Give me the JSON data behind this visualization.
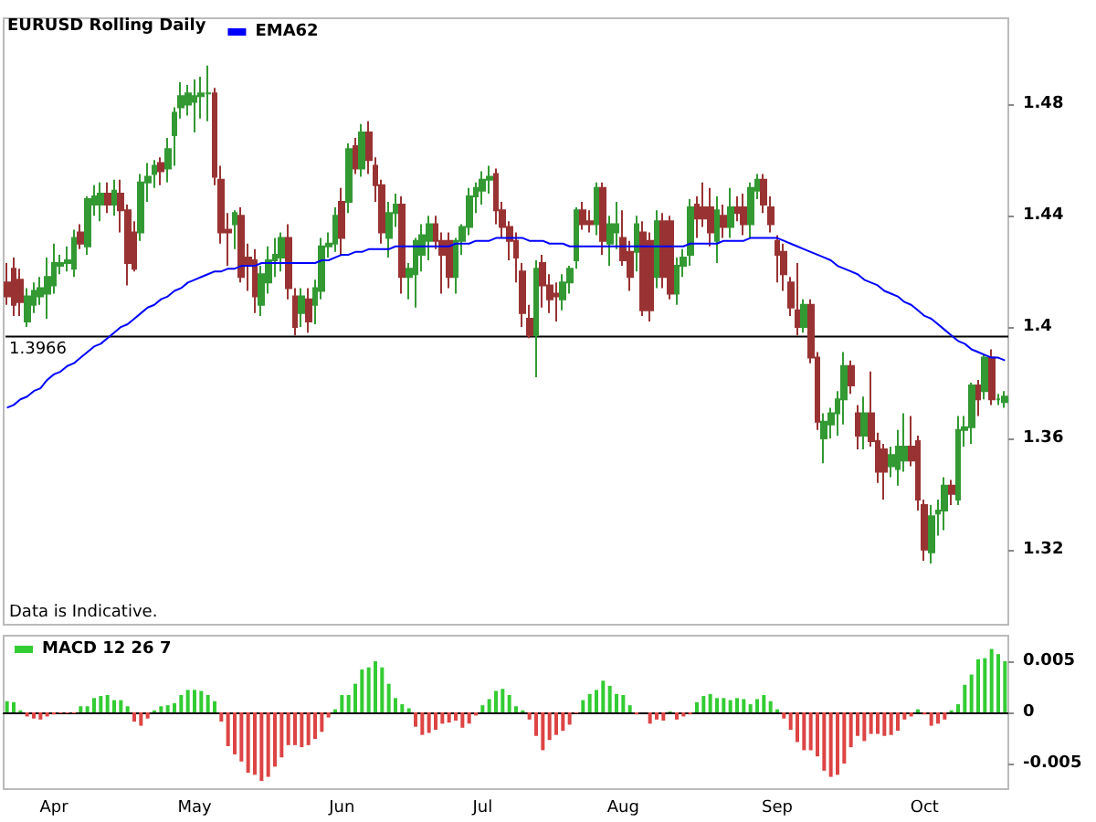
{
  "chart_data": [
    {
      "type": "candlestick",
      "title": "EURUSD Rolling Daily",
      "legend": "top left",
      "tick_labels": "y",
      "categories": [
        null,
        null,
        null,
        null,
        null,
        null,
        null,
        null,
        null,
        null,
        null,
        null,
        null,
        null,
        null,
        null,
        null,
        null,
        null,
        null,
        null,
        null,
        null,
        null,
        null,
        null,
        null,
        null,
        null,
        null,
        null,
        null,
        null,
        null,
        null,
        null,
        null,
        null,
        null,
        null,
        null,
        null,
        null,
        null,
        null,
        null,
        null,
        null,
        null,
        null,
        null,
        null,
        null,
        null,
        null,
        null,
        null,
        null,
        null,
        null,
        null,
        null,
        null,
        null,
        null,
        null,
        null,
        null,
        null,
        null,
        null,
        null,
        null,
        null,
        null,
        null,
        null,
        null,
        null,
        null,
        null,
        null,
        null,
        null,
        null,
        null,
        null,
        null,
        null,
        null,
        null,
        null,
        null,
        null,
        null,
        null,
        null,
        null,
        null,
        null,
        null,
        null,
        null,
        null,
        null,
        null,
        null,
        null,
        null,
        null,
        null,
        null,
        null,
        null,
        null,
        null,
        null,
        null,
        null,
        null,
        null,
        null,
        null,
        null,
        null,
        null,
        null,
        null,
        null,
        null,
        null,
        null,
        null,
        null,
        null,
        null,
        null,
        null,
        null,
        null,
        null,
        null,
        null,
        null,
        null,
        null,
        null,
        null,
        null,
        null
      ],
      "colors": [
        "#993333",
        "#993333",
        "#993333",
        "#339933",
        "#339933",
        "#339933",
        "#339933",
        "#339933",
        "#339933",
        "#339933",
        "#339933",
        "#993333",
        "#339933",
        "#339933",
        "#339933",
        "#993333",
        "#339933",
        "#993333",
        "#993333",
        "#993333",
        "#339933",
        "#339933",
        "#339933",
        "#993333",
        "#339933",
        "#339933",
        "#339933",
        "#339933",
        "#339933",
        "#339933",
        "#339933",
        "#993333",
        "#993333",
        "#993333",
        "#339933",
        "#993333",
        "#993333",
        "#993333",
        "#339933",
        "#339933",
        "#339933",
        "#339933",
        "#993333",
        "#993333",
        "#339933",
        "#993333",
        "#339933",
        "#339933",
        "#339933",
        "#339933",
        "#993333",
        "#339933",
        "#993333",
        "#339933",
        "#993333",
        "#993333",
        "#993333",
        "#339933",
        "#339933",
        "#993333",
        "#339933",
        "#339933",
        "#339933",
        "#339933",
        "#993333",
        "#993333",
        "#993333",
        "#339933",
        "#339933",
        "#339933",
        "#339933",
        "#339933",
        "#339933",
        "#993333",
        "#993333",
        "#993333",
        "#993333",
        "#993333",
        "#993333",
        "#339933",
        "#993333",
        "#993333",
        "#993333",
        "#339933",
        "#339933",
        "#339933",
        "#993333",
        "#993333",
        "#339933",
        "#993333",
        "#339933",
        "#339933",
        "#993333",
        "#993333",
        "#339933",
        "#993333",
        "#993333",
        "#339933",
        "#993333",
        "#993333",
        "#339933",
        "#339933",
        "#339933",
        "#993333",
        "#993333",
        "#993333",
        "#339933",
        "#993333",
        "#339933",
        "#993333",
        "#993333",
        "#339933",
        "#339933",
        "#993333",
        "#993333",
        "#993333",
        "#993333",
        "#993333",
        "#993333",
        "#339933",
        "#993333",
        "#993333",
        "#339933",
        "#339933",
        "#339933",
        "#339933",
        "#993333",
        "#993333",
        "#339933",
        "#993333",
        "#993333",
        "#993333",
        "#339933",
        "#339933",
        "#339933",
        "#993333",
        "#993333",
        "#993333",
        "#339933",
        "#339933",
        "#339933",
        "#993333",
        "#339933",
        "#339933",
        "#339933",
        "#993333",
        "#339933",
        "#993333",
        "#339933",
        "#339933"
      ],
      "ohlc": [
        [
          1.416,
          1.423,
          1.408,
          1.411
        ],
        [
          1.421,
          1.425,
          1.404,
          1.408
        ],
        [
          1.417,
          1.421,
          1.404,
          1.409
        ],
        [
          1.402,
          1.414,
          1.4,
          1.411
        ],
        [
          1.408,
          1.416,
          1.405,
          1.413
        ],
        [
          1.411,
          1.418,
          1.408,
          1.414
        ],
        [
          1.412,
          1.425,
          1.403,
          1.418
        ],
        [
          1.415,
          1.43,
          1.412,
          1.423
        ],
        [
          1.422,
          1.426,
          1.419,
          1.423
        ],
        [
          1.423,
          1.429,
          1.42,
          1.424
        ],
        [
          1.421,
          1.435,
          1.418,
          1.432
        ],
        [
          1.434,
          1.437,
          1.428,
          1.43
        ],
        [
          1.429,
          1.447,
          1.426,
          1.446
        ],
        [
          1.444,
          1.451,
          1.44,
          1.447
        ],
        [
          1.444,
          1.452,
          1.438,
          1.448
        ],
        [
          1.448,
          1.452,
          1.441,
          1.444
        ],
        [
          1.444,
          1.453,
          1.44,
          1.449
        ],
        [
          1.448,
          1.453,
          1.434,
          1.442
        ],
        [
          1.442,
          1.444,
          1.415,
          1.423
        ],
        [
          1.434,
          1.438,
          1.42,
          1.421
        ],
        [
          1.434,
          1.455,
          1.431,
          1.452
        ],
        [
          1.452,
          1.459,
          1.445,
          1.454
        ],
        [
          1.455,
          1.46,
          1.45,
          1.458
        ],
        [
          1.459,
          1.461,
          1.451,
          1.456
        ],
        [
          1.457,
          1.468,
          1.452,
          1.464
        ],
        [
          1.469,
          1.479,
          1.458,
          1.477
        ],
        [
          1.479,
          1.488,
          1.475,
          1.483
        ],
        [
          1.48,
          1.487,
          1.476,
          1.484
        ],
        [
          1.481,
          1.489,
          1.47,
          1.483
        ],
        [
          1.483,
          1.49,
          1.475,
          1.484
        ],
        [
          1.484,
          1.494,
          1.474,
          1.484
        ],
        [
          1.484,
          1.486,
          1.451,
          1.454
        ],
        [
          1.453,
          1.458,
          1.43,
          1.434
        ],
        [
          1.435,
          1.441,
          1.422,
          1.434
        ],
        [
          1.437,
          1.442,
          1.428,
          1.441
        ],
        [
          1.44,
          1.443,
          1.416,
          1.418
        ],
        [
          1.425,
          1.43,
          1.413,
          1.422
        ],
        [
          1.424,
          1.428,
          1.405,
          1.411
        ],
        [
          1.408,
          1.422,
          1.404,
          1.419
        ],
        [
          1.416,
          1.429,
          1.412,
          1.424
        ],
        [
          1.424,
          1.432,
          1.418,
          1.426
        ],
        [
          1.425,
          1.434,
          1.42,
          1.432
        ],
        [
          1.432,
          1.437,
          1.41,
          1.414
        ],
        [
          1.411,
          1.414,
          1.397,
          1.4
        ],
        [
          1.405,
          1.414,
          1.4,
          1.411
        ],
        [
          1.41,
          1.414,
          1.398,
          1.402
        ],
        [
          1.408,
          1.417,
          1.401,
          1.414
        ],
        [
          1.413,
          1.432,
          1.41,
          1.429
        ],
        [
          1.429,
          1.434,
          1.425,
          1.43
        ],
        [
          1.43,
          1.443,
          1.427,
          1.44
        ],
        [
          1.445,
          1.45,
          1.426,
          1.432
        ],
        [
          1.445,
          1.466,
          1.441,
          1.464
        ],
        [
          1.465,
          1.468,
          1.455,
          1.457
        ],
        [
          1.457,
          1.473,
          1.454,
          1.47
        ],
        [
          1.47,
          1.474,
          1.455,
          1.46
        ],
        [
          1.458,
          1.461,
          1.445,
          1.451
        ],
        [
          1.451,
          1.453,
          1.43,
          1.434
        ],
        [
          1.432,
          1.445,
          1.425,
          1.441
        ],
        [
          1.441,
          1.448,
          1.436,
          1.444
        ],
        [
          1.444,
          1.447,
          1.412,
          1.418
        ],
        [
          1.418,
          1.423,
          1.41,
          1.421
        ],
        [
          1.419,
          1.432,
          1.407,
          1.431
        ],
        [
          1.426,
          1.437,
          1.42,
          1.433
        ],
        [
          1.431,
          1.44,
          1.424,
          1.437
        ],
        [
          1.437,
          1.44,
          1.428,
          1.431
        ],
        [
          1.431,
          1.434,
          1.412,
          1.426
        ],
        [
          1.431,
          1.434,
          1.414,
          1.418
        ],
        [
          1.418,
          1.432,
          1.412,
          1.431
        ],
        [
          1.431,
          1.437,
          1.426,
          1.436
        ],
        [
          1.436,
          1.45,
          1.433,
          1.447
        ],
        [
          1.447,
          1.452,
          1.441,
          1.45
        ],
        [
          1.449,
          1.456,
          1.444,
          1.453
        ],
        [
          1.453,
          1.458,
          1.448,
          1.454
        ],
        [
          1.455,
          1.457,
          1.437,
          1.442
        ],
        [
          1.442,
          1.445,
          1.432,
          1.436
        ],
        [
          1.436,
          1.438,
          1.424,
          1.431
        ],
        [
          1.431,
          1.434,
          1.416,
          1.425
        ],
        [
          1.42,
          1.423,
          1.4,
          1.405
        ],
        [
          1.403,
          1.408,
          1.396,
          1.397
        ],
        [
          1.397,
          1.424,
          1.382,
          1.421
        ],
        [
          1.423,
          1.426,
          1.407,
          1.415
        ],
        [
          1.415,
          1.419,
          1.405,
          1.41
        ],
        [
          1.412,
          1.416,
          1.402,
          1.411
        ],
        [
          1.41,
          1.419,
          1.406,
          1.416
        ],
        [
          1.416,
          1.422,
          1.412,
          1.421
        ],
        [
          1.424,
          1.443,
          1.421,
          1.442
        ],
        [
          1.442,
          1.445,
          1.435,
          1.437
        ],
        [
          1.438,
          1.442,
          1.434,
          1.437
        ],
        [
          1.437,
          1.452,
          1.433,
          1.45
        ],
        [
          1.45,
          1.452,
          1.426,
          1.431
        ],
        [
          1.43,
          1.44,
          1.422,
          1.437
        ],
        [
          1.434,
          1.445,
          1.428,
          1.437
        ],
        [
          1.432,
          1.442,
          1.422,
          1.424
        ],
        [
          1.427,
          1.431,
          1.413,
          1.418
        ],
        [
          1.427,
          1.44,
          1.42,
          1.437
        ],
        [
          1.434,
          1.438,
          1.404,
          1.406
        ],
        [
          1.431,
          1.434,
          1.402,
          1.406
        ],
        [
          1.418,
          1.442,
          1.414,
          1.438
        ],
        [
          1.438,
          1.441,
          1.414,
          1.418
        ],
        [
          1.438,
          1.44,
          1.41,
          1.412
        ],
        [
          1.412,
          1.425,
          1.408,
          1.422
        ],
        [
          1.422,
          1.428,
          1.418,
          1.425
        ],
        [
          1.426,
          1.446,
          1.422,
          1.443
        ],
        [
          1.444,
          1.447,
          1.432,
          1.439
        ],
        [
          1.443,
          1.452,
          1.436,
          1.439
        ],
        [
          1.443,
          1.45,
          1.429,
          1.434
        ],
        [
          1.431,
          1.447,
          1.423,
          1.442
        ],
        [
          1.44,
          1.444,
          1.432,
          1.436
        ],
        [
          1.436,
          1.45,
          1.432,
          1.443
        ],
        [
          1.443,
          1.447,
          1.438,
          1.441
        ],
        [
          1.443,
          1.448,
          1.433,
          1.437
        ],
        [
          1.437,
          1.452,
          1.432,
          1.45
        ],
        [
          1.449,
          1.455,
          1.446,
          1.453
        ],
        [
          1.453,
          1.455,
          1.441,
          1.444
        ],
        [
          1.443,
          1.447,
          1.434,
          1.437
        ],
        [
          1.431,
          1.433,
          1.416,
          1.426
        ],
        [
          1.427,
          1.43,
          1.413,
          1.419
        ],
        [
          1.416,
          1.418,
          1.404,
          1.407
        ],
        [
          1.406,
          1.423,
          1.397,
          1.4
        ],
        [
          1.4,
          1.41,
          1.398,
          1.408
        ],
        [
          1.408,
          1.41,
          1.387,
          1.389
        ],
        [
          1.389,
          1.391,
          1.363,
          1.366
        ],
        [
          1.36,
          1.369,
          1.351,
          1.366
        ],
        [
          1.365,
          1.371,
          1.36,
          1.369
        ],
        [
          1.369,
          1.377,
          1.361,
          1.374
        ],
        [
          1.374,
          1.391,
          1.365,
          1.386
        ],
        [
          1.386,
          1.388,
          1.376,
          1.379
        ],
        [
          1.369,
          1.372,
          1.356,
          1.361
        ],
        [
          1.361,
          1.375,
          1.356,
          1.369
        ],
        [
          1.369,
          1.384,
          1.357,
          1.359
        ],
        [
          1.359,
          1.362,
          1.344,
          1.348
        ],
        [
          1.356,
          1.358,
          1.338,
          1.348
        ],
        [
          1.35,
          1.357,
          1.346,
          1.354
        ],
        [
          1.349,
          1.363,
          1.343,
          1.357
        ],
        [
          1.352,
          1.369,
          1.348,
          1.357
        ],
        [
          1.357,
          1.368,
          1.35,
          1.352
        ],
        [
          1.359,
          1.361,
          1.334,
          1.338
        ],
        [
          1.336,
          1.338,
          1.316,
          1.32
        ],
        [
          1.319,
          1.336,
          1.315,
          1.332
        ],
        [
          1.333,
          1.338,
          1.325,
          1.334
        ],
        [
          1.334,
          1.346,
          1.327,
          1.343
        ],
        [
          1.343,
          1.345,
          1.336,
          1.34
        ],
        [
          1.338,
          1.368,
          1.336,
          1.363
        ],
        [
          1.363,
          1.368,
          1.357,
          1.364
        ],
        [
          1.364,
          1.38,
          1.358,
          1.379
        ],
        [
          1.379,
          1.381,
          1.368,
          1.374
        ],
        [
          1.377,
          1.39,
          1.374,
          1.389
        ],
        [
          1.389,
          1.392,
          1.372,
          1.374
        ],
        [
          1.374,
          1.376,
          1.372,
          1.374
        ],
        [
          1.373,
          1.377,
          1.371,
          1.375
        ]
      ],
      "series": [
        {
          "type": "line",
          "name": "EMA62",
          "color": "#0000ff",
          "values": [
            1.371,
            1.372,
            1.374,
            1.375,
            1.377,
            1.378,
            1.381,
            1.383,
            1.384,
            1.386,
            1.387,
            1.389,
            1.391,
            1.393,
            1.394,
            1.396,
            1.398,
            1.4,
            1.401,
            1.403,
            1.405,
            1.407,
            1.408,
            1.41,
            1.411,
            1.413,
            1.414,
            1.416,
            1.417,
            1.418,
            1.419,
            1.42,
            1.42,
            1.421,
            1.421,
            1.422,
            1.422,
            1.422,
            1.423,
            1.423,
            1.423,
            1.423,
            1.423,
            1.423,
            1.423,
            1.423,
            1.423,
            1.424,
            1.424,
            1.425,
            1.426,
            1.426,
            1.427,
            1.427,
            1.428,
            1.428,
            1.428,
            1.428,
            1.429,
            1.429,
            1.429,
            1.429,
            1.429,
            1.429,
            1.429,
            1.429,
            1.429,
            1.43,
            1.43,
            1.43,
            1.431,
            1.431,
            1.431,
            1.432,
            1.432,
            1.432,
            1.432,
            1.432,
            1.431,
            1.431,
            1.431,
            1.43,
            1.43,
            1.43,
            1.429,
            1.429,
            1.429,
            1.429,
            1.429,
            1.429,
            1.429,
            1.429,
            1.429,
            1.429,
            1.429,
            1.429,
            1.429,
            1.429,
            1.429,
            1.429,
            1.429,
            1.429,
            1.43,
            1.43,
            1.43,
            1.43,
            1.43,
            1.431,
            1.431,
            1.431,
            1.431,
            1.432,
            1.432,
            1.432,
            1.432,
            1.432,
            1.431,
            1.43,
            1.429,
            1.428,
            1.427,
            1.426,
            1.425,
            1.424,
            1.422,
            1.421,
            1.42,
            1.419,
            1.417,
            1.416,
            1.415,
            1.413,
            1.412,
            1.411,
            1.409,
            1.408,
            1.406,
            1.404,
            1.403,
            1.401,
            1.399,
            1.397,
            1.395,
            1.394,
            1.392,
            1.391,
            1.39,
            1.389,
            1.389,
            1.388
          ]
        }
      ],
      "ylim": [
        1.293,
        1.511
      ],
      "yticks": [
        1.32,
        1.36,
        1.4,
        1.44,
        1.48
      ],
      "ref_lines": [
        {
          "axis": "y",
          "value": 1.3966,
          "label": "1.3966",
          "color": "#000000"
        }
      ],
      "annotations": [
        "Data is Indicative."
      ]
    },
    {
      "type": "bar",
      "legend": "top left",
      "categories": [
        null,
        null,
        null,
        null,
        null,
        null,
        null,
        "Apr",
        null,
        null,
        null,
        null,
        null,
        null,
        null,
        null,
        null,
        null,
        null,
        null,
        null,
        null,
        null,
        null,
        null,
        null,
        null,
        null,
        "May",
        null,
        null,
        null,
        null,
        null,
        null,
        null,
        null,
        null,
        null,
        null,
        null,
        null,
        null,
        null,
        null,
        null,
        null,
        null,
        null,
        null,
        "Jun",
        null,
        null,
        null,
        null,
        null,
        null,
        null,
        null,
        null,
        null,
        null,
        null,
        null,
        null,
        null,
        null,
        null,
        null,
        null,
        null,
        "Jul",
        null,
        null,
        null,
        null,
        null,
        null,
        null,
        null,
        null,
        null,
        null,
        null,
        null,
        null,
        null,
        null,
        null,
        null,
        null,
        null,
        "Aug",
        null,
        null,
        null,
        null,
        null,
        null,
        null,
        null,
        null,
        null,
        null,
        null,
        null,
        null,
        null,
        null,
        null,
        null,
        null,
        null,
        null,
        null,
        "Sep",
        null,
        null,
        null,
        null,
        null,
        null,
        null,
        null,
        null,
        null,
        null,
        null,
        null,
        null,
        null,
        null,
        null,
        null,
        null,
        null,
        null,
        "Oct",
        null,
        null,
        null,
        null,
        null,
        null,
        null,
        null,
        null,
        null,
        null,
        null
      ],
      "series": [
        {
          "name": "MACD 12 26 7",
          "colors": [
            "#33cc33",
            "#33cc33",
            "#33cc33",
            "#dd4444",
            "#dd4444",
            "#dd4444",
            "#dd4444",
            "#dd4444",
            "#dd4444",
            "#dd4444",
            "#dd4444",
            "#33cc33",
            "#33cc33",
            "#33cc33",
            "#33cc33",
            "#33cc33",
            "#33cc33",
            "#33cc33",
            "#33cc33",
            "#dd4444",
            "#dd4444",
            "#dd4444",
            "#33cc33",
            "#33cc33",
            "#33cc33",
            "#33cc33",
            "#33cc33",
            "#33cc33",
            "#33cc33",
            "#33cc33",
            "#33cc33",
            "#33cc33",
            "#dd4444",
            "#dd4444",
            "#dd4444",
            "#dd4444",
            "#dd4444",
            "#dd4444",
            "#dd4444",
            "#dd4444",
            "#dd4444",
            "#dd4444",
            "#dd4444",
            "#dd4444",
            "#dd4444",
            "#dd4444",
            "#dd4444",
            "#dd4444",
            "#dd4444",
            "#33cc33",
            "#33cc33",
            "#33cc33",
            "#33cc33",
            "#33cc33",
            "#33cc33",
            "#33cc33",
            "#33cc33",
            "#33cc33",
            "#33cc33",
            "#33cc33",
            "#33cc33",
            "#dd4444",
            "#dd4444",
            "#dd4444",
            "#dd4444",
            "#dd4444",
            "#dd4444",
            "#dd4444",
            "#dd4444",
            "#dd4444",
            "#dd4444",
            "#33cc33",
            "#33cc33",
            "#33cc33",
            "#33cc33",
            "#33cc33",
            "#33cc33",
            "#33cc33",
            "#dd4444",
            "#dd4444",
            "#dd4444",
            "#dd4444",
            "#dd4444",
            "#dd4444",
            "#dd4444",
            "#dd4444",
            "#33cc33",
            "#33cc33",
            "#33cc33",
            "#33cc33",
            "#33cc33",
            "#33cc33",
            "#33cc33",
            "#33cc33",
            "#dd4444",
            "#dd4444",
            "#dd4444",
            "#dd4444",
            "#dd4444",
            "#33cc33",
            "#dd4444",
            "#dd4444",
            "#dd4444",
            "#33cc33",
            "#33cc33",
            "#33cc33",
            "#33cc33",
            "#33cc33",
            "#33cc33",
            "#33cc33",
            "#33cc33",
            "#33cc33",
            "#33cc33",
            "#33cc33",
            "#33cc33",
            "#33cc33",
            "#dd4444",
            "#dd4444",
            "#dd4444",
            "#dd4444",
            "#dd4444",
            "#dd4444",
            "#dd4444",
            "#dd4444",
            "#dd4444",
            "#dd4444",
            "#dd4444",
            "#dd4444",
            "#dd4444",
            "#dd4444",
            "#dd4444",
            "#dd4444",
            "#dd4444",
            "#dd4444",
            "#dd4444",
            "#dd4444",
            "#33cc33",
            "#dd4444",
            "#dd4444",
            "#dd4444",
            "#dd4444",
            "#33cc33",
            "#33cc33",
            "#33cc33",
            "#33cc33",
            "#33cc33",
            "#33cc33",
            "#33cc33",
            "#33cc33",
            "#33cc33"
          ],
          "values": [
            0.0011,
            0.001,
            0.0002,
            -0.0004,
            -0.0006,
            -0.0007,
            -0.0004,
            -0.0002,
            -0.0001,
            -0.0001,
            -0.0001,
            0.0006,
            0.0006,
            0.0014,
            0.0016,
            0.0017,
            0.0012,
            0.0012,
            0.0006,
            -0.0009,
            -0.0013,
            -0.0006,
            0.0002,
            0.0006,
            0.0007,
            0.0009,
            0.0017,
            0.0022,
            0.0022,
            0.0021,
            0.0017,
            0.0011,
            -0.0009,
            -0.0033,
            -0.0041,
            -0.0048,
            -0.0059,
            -0.0061,
            -0.0067,
            -0.0063,
            -0.0053,
            -0.0044,
            -0.0032,
            -0.0032,
            -0.0034,
            -0.0032,
            -0.0026,
            -0.0019,
            -0.0005,
            0.0003,
            0.0017,
            0.0017,
            0.0028,
            0.0042,
            0.0044,
            0.005,
            0.0044,
            0.0028,
            0.0014,
            0.0008,
            0.0004,
            -0.0014,
            -0.0022,
            -0.002,
            -0.0017,
            -0.0011,
            -0.001,
            -0.0008,
            -0.0015,
            -0.0011,
            -0.0003,
            0.0007,
            0.0013,
            0.0021,
            0.0023,
            0.0017,
            0.0006,
            0.0002,
            -0.0007,
            -0.0023,
            -0.0037,
            -0.0027,
            -0.0022,
            -0.0018,
            -0.0012,
            -0.0001,
            0.0012,
            0.0018,
            0.0022,
            0.0031,
            0.0026,
            0.0018,
            0.0017,
            0.0007,
            -0.0002,
            0,
            -0.0011,
            -0.0007,
            -0.0008,
            0.0001,
            -0.0007,
            -0.0004,
            -0.0002,
            0.001,
            0.0016,
            0.0018,
            0.0014,
            0.0014,
            0.0012,
            0.0014,
            0.0013,
            0.0008,
            0.0013,
            0.0017,
            0.0011,
            0.0003,
            -0.0006,
            -0.0017,
            -0.0029,
            -0.0037,
            -0.0037,
            -0.0043,
            -0.0057,
            -0.0063,
            -0.0061,
            -0.005,
            -0.0034,
            -0.0023,
            -0.0028,
            -0.0021,
            -0.0021,
            -0.0023,
            -0.0022,
            -0.0018,
            -0.0007,
            -0.0004,
            0.0003,
            -0.0002,
            -0.0013,
            -0.0011,
            -0.0007,
            0.0002,
            0.0008,
            0.0027,
            0.0037,
            0.0052,
            0.0053,
            0.0062,
            0.0057,
            0.005
          ]
        }
      ],
      "ylim": [
        -0.0075,
        0.0075
      ],
      "yticks": [
        -0.005,
        0,
        0.005
      ]
    }
  ]
}
